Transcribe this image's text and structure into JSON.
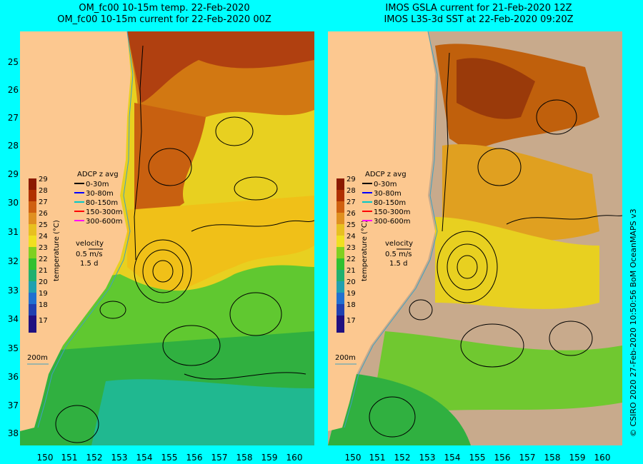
{
  "left_panel": {
    "title_line1": "OM_fc00 10-15m temp. 22-Feb-2020",
    "title_line2": "OM_fc00 10-15m current for 22-Feb-2020 00Z"
  },
  "right_panel": {
    "title_line1": "IMOS GSLA current for 21-Feb-2020 12Z",
    "title_line2": "IMOS L3S-3d SST at 22-Feb-2020 09:20Z"
  },
  "colorbar": {
    "ticks": [
      "29",
      "28",
      "27",
      "26",
      "25",
      "24",
      "23",
      "22",
      "21",
      "20",
      "19",
      "18",
      "17"
    ],
    "label": "temperature (°C)",
    "colors": [
      "#8b1a00",
      "#b03000",
      "#d06010",
      "#e09020",
      "#e8c020",
      "#f0e020",
      "#80d020",
      "#30c030",
      "#20b070",
      "#20a0b0",
      "#2070d0",
      "#2040b0",
      "#201080"
    ]
  },
  "legend": {
    "title": "ADCP z avg",
    "items": [
      {
        "label": "0-30m",
        "color": "#000000"
      },
      {
        "label": "30-80m",
        "color": "#0000ff"
      },
      {
        "label": "80-150m",
        "color": "#00c8c8"
      },
      {
        "label": "150-300m",
        "color": "#ff0000"
      },
      {
        "label": "300-600m",
        "color": "#ff00ff"
      }
    ]
  },
  "velocity": {
    "title": "velocity",
    "speed": "0.5 m/s",
    "time": "1.5 d"
  },
  "depth_label": "200m",
  "latitudes": [
    "25",
    "26",
    "27",
    "28",
    "29",
    "30",
    "31",
    "32",
    "33",
    "34",
    "35",
    "36",
    "37",
    "38"
  ],
  "longitudes": [
    "150",
    "151",
    "152",
    "153",
    "154",
    "155",
    "156",
    "157",
    "158",
    "159",
    "160"
  ],
  "credit": "© CSIRO 2020   27-Feb-2020 10:50:56 BoM OceanMAPS v3",
  "colors": {
    "background": "#00ffff",
    "land": "#fcc890",
    "no_data": "#c8aa8c"
  }
}
